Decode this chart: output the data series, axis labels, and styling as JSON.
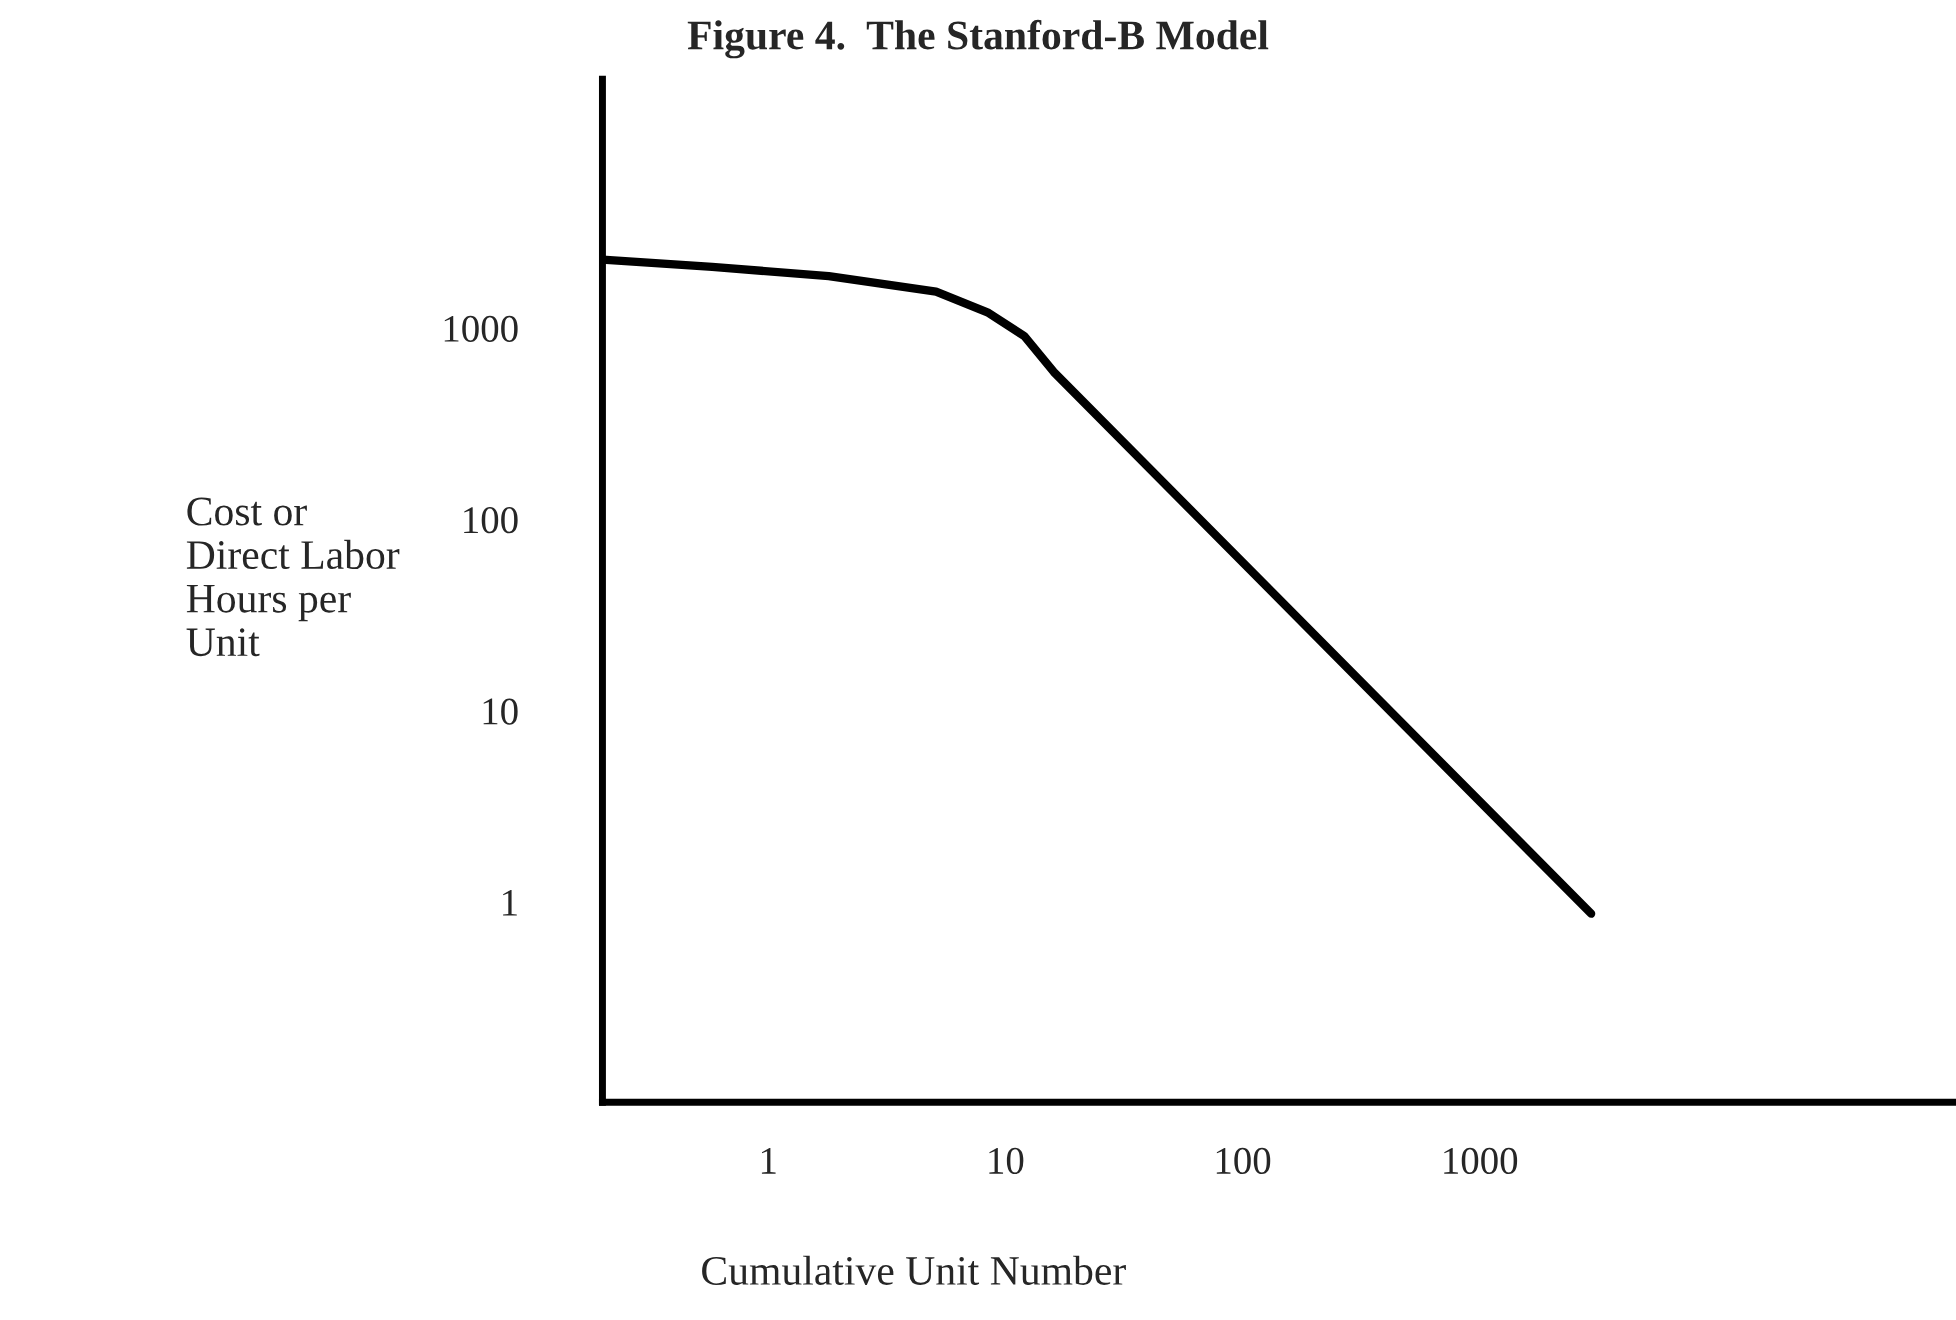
{
  "chart_data": {
    "type": "line",
    "title": "Figure 4.  The Stanford-B Model",
    "xlabel": "Cumulative Unit Number",
    "ylabel": "Cost or\nDirect Labor\nHours per\nUnit",
    "log": "xy",
    "x": [
      0.2,
      0.58,
      1.8,
      5.1,
      8.4,
      12,
      16,
      2950
    ],
    "series": [
      {
        "color": "#000000",
        "values": [
          2280,
          2090,
          1870,
          1550,
          1210,
          910,
          590,
          0.87
        ]
      }
    ],
    "xlim": [
      0.2,
      100000
    ],
    "xticks": [
      1,
      10,
      100,
      1000
    ],
    "ylim": [
      0.09,
      20000
    ],
    "yticks": [
      1,
      10,
      100,
      1000
    ],
    "grid": false,
    "legend": false,
    "marker": "none",
    "line_style": "solid"
  }
}
